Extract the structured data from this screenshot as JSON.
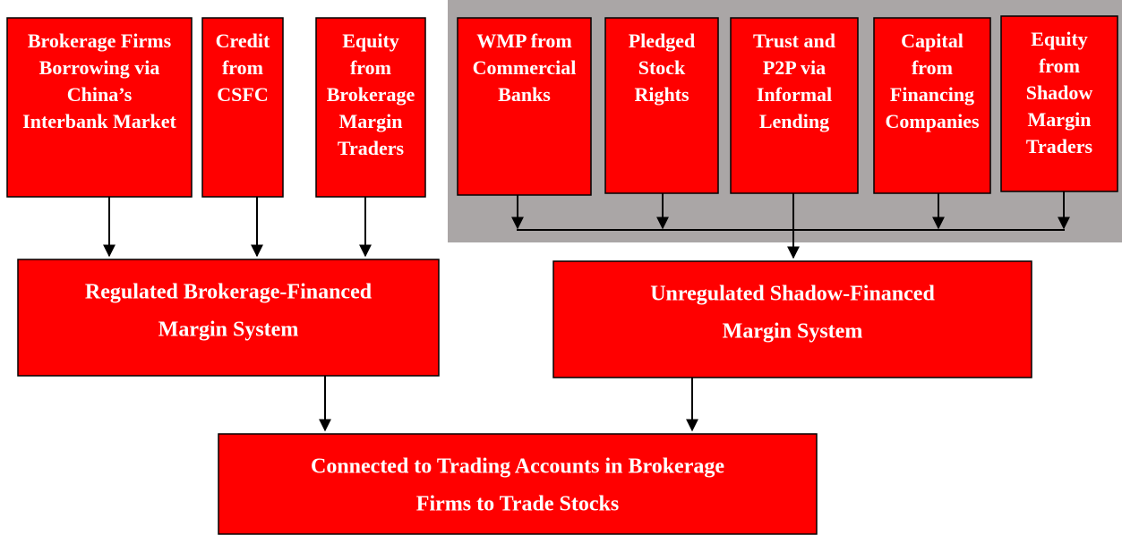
{
  "nodes": [
    {
      "lines": [
        "Brokerage Firms",
        "Borrowing via",
        "China’s",
        "Interbank Market"
      ]
    },
    {
      "lines": [
        "Credit",
        "from",
        "CSFC"
      ]
    },
    {
      "lines": [
        "Equity",
        "from",
        "Brokerage",
        "Margin",
        "Traders"
      ]
    },
    {
      "lines": [
        "WMP from",
        "Commercial",
        "Banks"
      ]
    },
    {
      "lines": [
        "Pledged",
        "Stock",
        "Rights"
      ]
    },
    {
      "lines": [
        "Trust and",
        "P2P via",
        "Informal",
        "Lending"
      ]
    },
    {
      "lines": [
        "Capital",
        "from",
        "Financing",
        "Companies"
      ]
    },
    {
      "lines": [
        "Equity",
        "from",
        "Shadow",
        "Margin",
        "Traders"
      ]
    },
    {
      "lines": [
        "Regulated Brokerage-Financed",
        "Margin System"
      ]
    },
    {
      "lines": [
        "Unregulated Shadow-Financed",
        "Margin System"
      ]
    },
    {
      "lines": [
        "Connected to Trading Accounts in Brokerage",
        "Firms to Trade Stocks"
      ]
    }
  ]
}
